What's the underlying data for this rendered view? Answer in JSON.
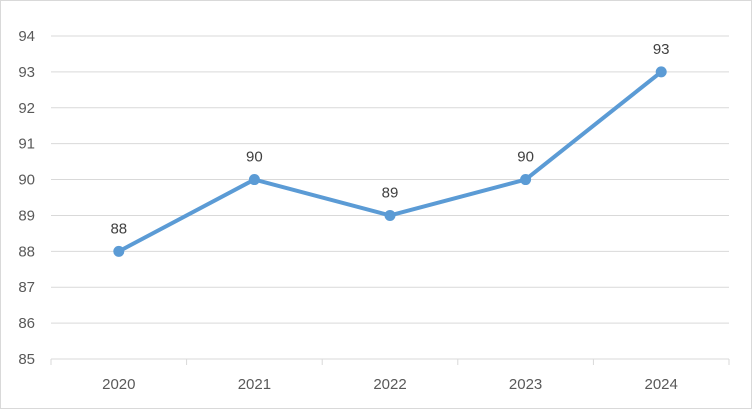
{
  "chart_data": {
    "type": "line",
    "title": "",
    "xlabel": "",
    "ylabel": "",
    "categories": [
      "2020",
      "2021",
      "2022",
      "2023",
      "2024"
    ],
    "series": [
      {
        "values": [
          88,
          90,
          89,
          90,
          93
        ],
        "color": "#5b9bd5"
      }
    ],
    "ylim": [
      85,
      94
    ],
    "yticks": [
      85,
      86,
      87,
      88,
      89,
      90,
      91,
      92,
      93,
      94
    ],
    "data_labels": true,
    "grid": {
      "horizontal": true,
      "vertical": false
    },
    "gridline_color": "#d9d9d9",
    "axis_color": "#d9d9d9",
    "legend": "none"
  }
}
